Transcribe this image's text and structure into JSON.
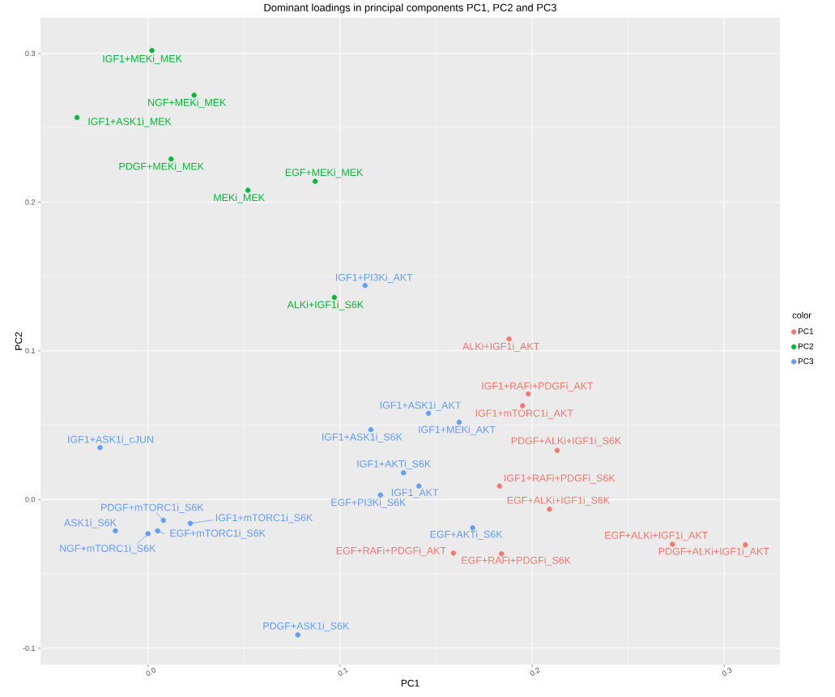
{
  "chart_data": {
    "type": "scatter",
    "title": "Dominant loadings in principal components PC1, PC2 and PC3",
    "xlabel": "PC1",
    "ylabel": "PC2",
    "legend_title": "color",
    "series": [
      {
        "name": "PC1",
        "color": "#f8766d",
        "x": [
          0.188,
          0.198,
          0.195,
          0.213,
          0.183,
          0.209,
          0.159,
          0.184,
          0.273,
          0.311
        ],
        "values": [
          0.108,
          0.071,
          0.063,
          0.033,
          0.009,
          -0.0065,
          -0.036,
          -0.0365,
          -0.03,
          -0.0305
        ]
      },
      {
        "name": "PC2",
        "color": "#00ba38",
        "x": [
          0.002,
          0.024,
          -0.037,
          0.012,
          0.052,
          0.087,
          0.097
        ],
        "values": [
          0.302,
          0.272,
          0.257,
          0.229,
          0.208,
          0.214,
          0.136
        ]
      },
      {
        "name": "PC3",
        "color": "#619cff",
        "x": [
          0.113,
          0.146,
          0.116,
          0.162,
          -0.025,
          0.133,
          0.141,
          0.121,
          0.008,
          0.022,
          -0.017,
          0.005,
          0.0,
          0.078,
          0.169
        ],
        "values": [
          0.144,
          0.058,
          0.047,
          0.052,
          0.035,
          0.018,
          0.009,
          0.003,
          -0.014,
          -0.016,
          -0.021,
          -0.021,
          -0.023,
          -0.091,
          -0.019
        ]
      }
    ],
    "annotations": [
      {
        "text": "IGF1+MEKi_MEK",
        "x": 0.002,
        "y": 0.302
      },
      {
        "text": "NGF+MEKi_MEK",
        "x": 0.024,
        "y": 0.272
      },
      {
        "text": "IGF1+ASK1i_MEK",
        "x": -0.037,
        "y": 0.257
      },
      {
        "text": "PDGF+MEKi_MEK",
        "x": 0.012,
        "y": 0.229
      },
      {
        "text": "MEKi_MEK",
        "x": 0.052,
        "y": 0.208
      },
      {
        "text": "EGF+MEKi_MEK",
        "x": 0.087,
        "y": 0.214
      },
      {
        "text": "ALKi+IGF1i_S6K",
        "x": 0.097,
        "y": 0.136
      },
      {
        "text": "IGF1+PI3Ki_AKT",
        "x": 0.113,
        "y": 0.144
      },
      {
        "text": "IGF1+ASK1i_AKT",
        "x": 0.146,
        "y": 0.058
      },
      {
        "text": "IGF1+ASK1i_S6K",
        "x": 0.116,
        "y": 0.047
      },
      {
        "text": "IGF1+MEKi_AKT",
        "x": 0.162,
        "y": 0.052
      },
      {
        "text": "IGF1+ASK1i_cJUN",
        "x": -0.025,
        "y": 0.035
      },
      {
        "text": "IGF1+AKTi_S6K",
        "x": 0.133,
        "y": 0.018
      },
      {
        "text": "IGF1_AKT",
        "x": 0.141,
        "y": 0.009
      },
      {
        "text": "EGF+PI3Ki_S6K",
        "x": 0.121,
        "y": 0.003
      },
      {
        "text": "PDGF+mTORC1i_S6K",
        "x": 0.008,
        "y": -0.014
      },
      {
        "text": "IGF1+mTORC1i_S6K",
        "x": 0.022,
        "y": -0.016
      },
      {
        "text": "ASK1i_S6K",
        "x": -0.017,
        "y": -0.021
      },
      {
        "text": "EGF+mTORC1i_S6K",
        "x": 0.005,
        "y": -0.021
      },
      {
        "text": "NGF+mTORC1i_S6K",
        "x": 0.0,
        "y": -0.023
      },
      {
        "text": "PDGF+ASK1i_S6K",
        "x": 0.078,
        "y": -0.091
      },
      {
        "text": "EGF+AKTi_S6K",
        "x": 0.169,
        "y": -0.019
      },
      {
        "text": "ALKi+IGF1i_AKT",
        "x": 0.188,
        "y": 0.108
      },
      {
        "text": "IGF1+RAFi+PDGFi_AKT",
        "x": 0.198,
        "y": 0.071
      },
      {
        "text": "IGF1+mTORC1i_AKT",
        "x": 0.195,
        "y": 0.063
      },
      {
        "text": "PDGF+ALKi+IGF1i_S6K",
        "x": 0.213,
        "y": 0.033
      },
      {
        "text": "IGF1+RAFi+PDGFi_S6K",
        "x": 0.183,
        "y": 0.009
      },
      {
        "text": "EGF+ALKi+IGF1i_S6K",
        "x": 0.209,
        "y": -0.0065
      },
      {
        "text": "EGF+RAFi+PDGFi_AKT",
        "x": 0.159,
        "y": -0.036
      },
      {
        "text": "EGF+RAFi+PDGFi_S6K",
        "x": 0.184,
        "y": -0.0365
      },
      {
        "text": "EGF+ALKi+IGF1i_AKT",
        "x": 0.273,
        "y": -0.03
      },
      {
        "text": "PDGF+ALKi+IGF1i_AKT",
        "x": 0.311,
        "y": -0.0305
      }
    ],
    "xlim": [
      -0.056,
      0.329
    ],
    "ylim": [
      -0.111,
      0.324
    ],
    "xticks": [
      {
        "value": 0,
        "label": "0.0"
      },
      0.1,
      0.2,
      0.3
    ],
    "yticks": [
      -0.1,
      {
        "value": 0,
        "label": "0.0"
      },
      0.1,
      0.2,
      0.3
    ],
    "grid": true,
    "legend": "right",
    "marker": "circle"
  }
}
